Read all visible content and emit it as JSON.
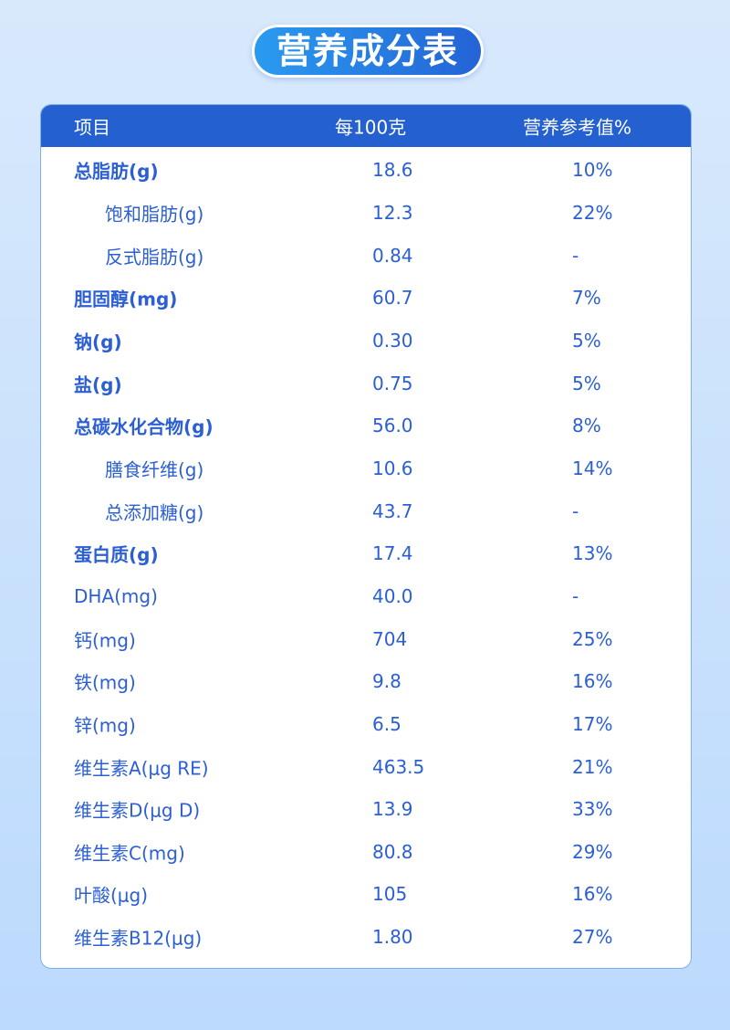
{
  "title": "营养成分表",
  "header": [
    "项目",
    "每100克",
    "营养参考值%"
  ],
  "rows": [
    {
      "name": "总脂肪(g)",
      "per100": "18.6",
      "nrv": "10%",
      "bold": true
    },
    {
      "name": "饱和脂肪(g)",
      "per100": "12.3",
      "nrv": "22%",
      "sub": true
    },
    {
      "name": "反式脂肪(g)",
      "per100": "0.84",
      "nrv": "-",
      "sub": true
    },
    {
      "name": "胆固醇(mg)",
      "per100": "60.7",
      "nrv": "7%",
      "bold": true
    },
    {
      "name": "钠(g)",
      "per100": "0.30",
      "nrv": "5%",
      "bold": true
    },
    {
      "name": "盐(g)",
      "per100": "0.75",
      "nrv": "5%",
      "bold": true
    },
    {
      "name": "总碳水化合物(g)",
      "per100": "56.0",
      "nrv": "8%",
      "bold": true
    },
    {
      "name": "膳食纤维(g)",
      "per100": "10.6",
      "nrv": "14%",
      "sub": true
    },
    {
      "name": "总添加糖(g)",
      "per100": "43.7",
      "nrv": "-",
      "sub": true
    },
    {
      "name": "蛋白质(g)",
      "per100": "17.4",
      "nrv": "13%",
      "bold": true
    },
    {
      "name": "DHA(mg)",
      "per100": "40.0",
      "nrv": "-"
    },
    {
      "name": "钙(mg)",
      "per100": "704",
      "nrv": "25%"
    },
    {
      "name": "铁(mg)",
      "per100": "9.8",
      "nrv": "16%"
    },
    {
      "name": "锌(mg)",
      "per100": "6.5",
      "nrv": "17%"
    },
    {
      "name": "维生素A(μg RE)",
      "per100": "463.5",
      "nrv": "21%"
    },
    {
      "name": "维生素D(μg D)",
      "per100": "13.9",
      "nrv": "33%"
    },
    {
      "name": "维生素C(mg)",
      "per100": "80.8",
      "nrv": "29%"
    },
    {
      "name": "叶酸(μg)",
      "per100": "105",
      "nrv": "16%"
    },
    {
      "name": "维生素B12(μg)",
      "per100": "1.80",
      "nrv": "27%"
    }
  ]
}
